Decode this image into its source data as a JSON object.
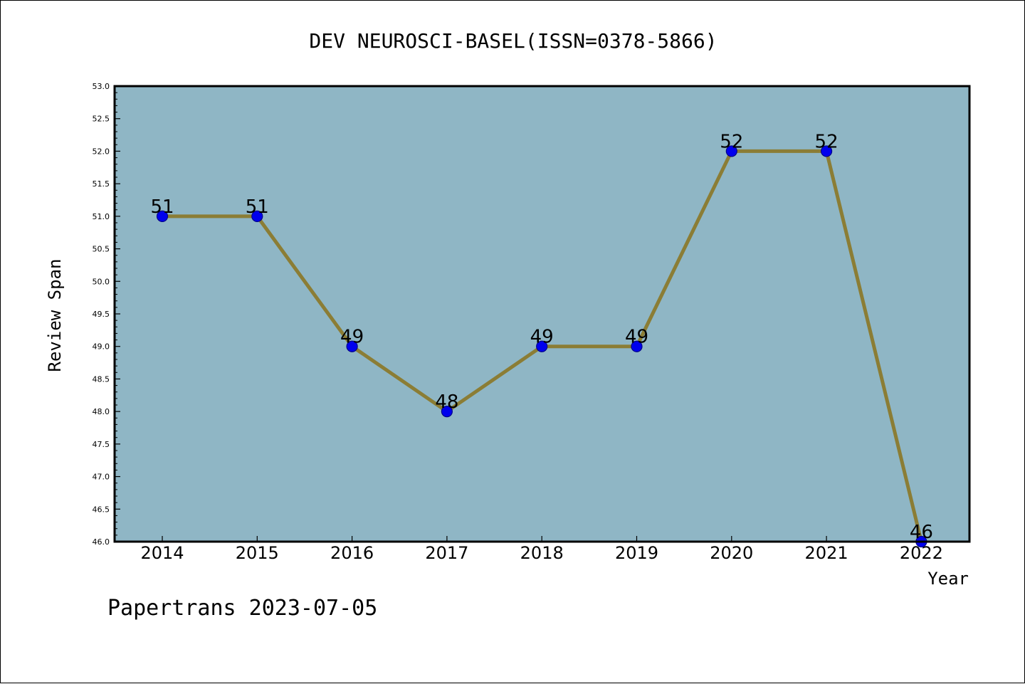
{
  "chart_data": {
    "type": "line",
    "title": "DEV NEUROSCI-BASEL(ISSN=0378-5866)",
    "xlabel": "Year",
    "ylabel": "Review Span",
    "categories": [
      "2014",
      "2015",
      "2016",
      "2017",
      "2018",
      "2019",
      "2020",
      "2021",
      "2022"
    ],
    "values": [
      51,
      51,
      49,
      48,
      49,
      49,
      52,
      52,
      46
    ],
    "data_labels": [
      "51",
      "51",
      "49",
      "48",
      "49",
      "49",
      "52",
      "52",
      "46"
    ],
    "ylim": [
      46.0,
      53.0
    ],
    "yticks": [
      "46.0",
      "46.5",
      "47.0",
      "47.5",
      "48.0",
      "48.5",
      "49.0",
      "49.5",
      "50.0",
      "50.5",
      "51.0",
      "51.5",
      "52.0",
      "52.5",
      "53.0"
    ],
    "grid": false,
    "legend": "none",
    "colors": {
      "plot_background": "#8fb6c5",
      "line": "#8b7d35",
      "marker": "#0000ee",
      "marker_edge": "#00008b"
    }
  },
  "footer": {
    "watermark": "Papertrans 2023-07-05"
  }
}
